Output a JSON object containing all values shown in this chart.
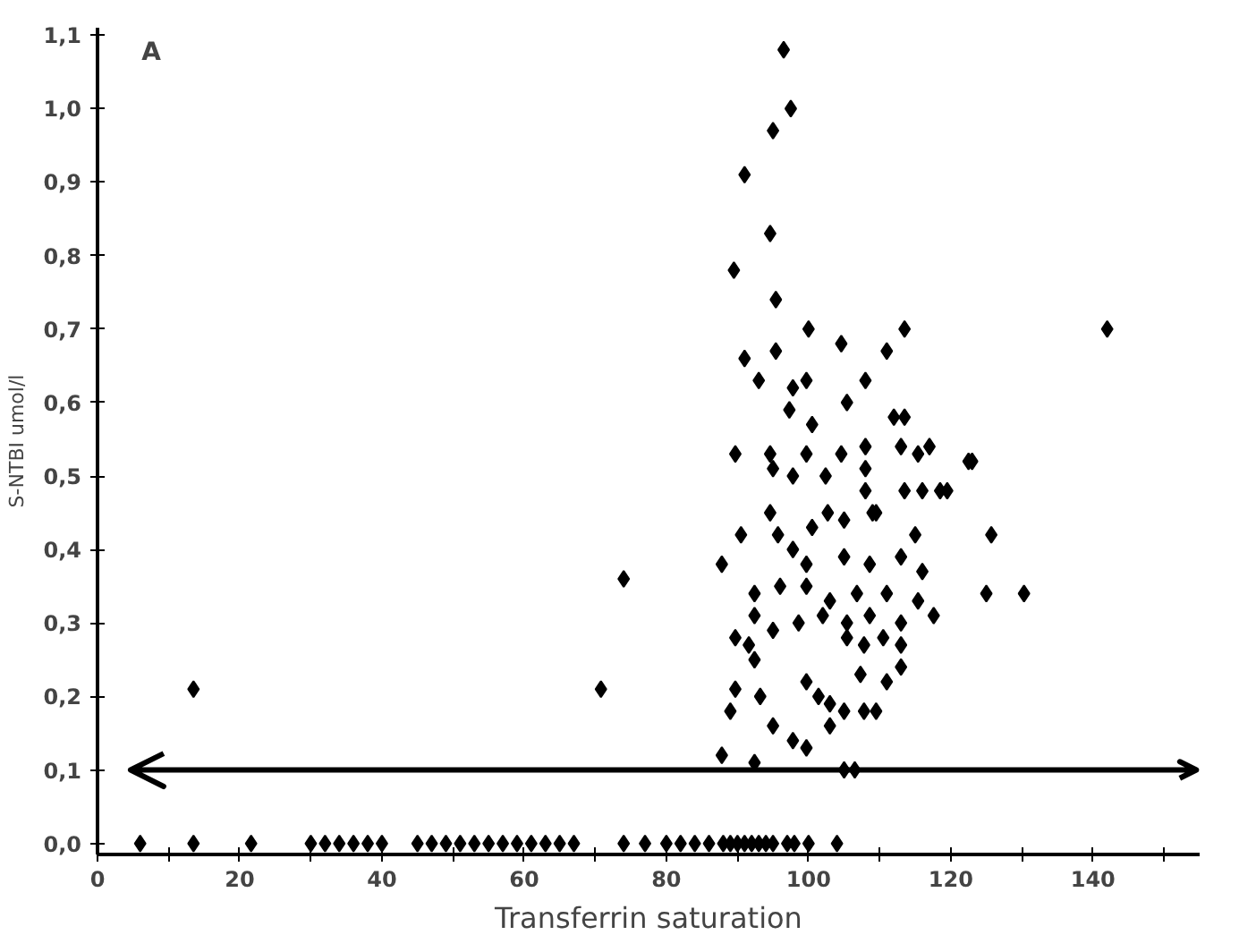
{
  "chart_data": {
    "type": "scatter",
    "xlabel": "Transferrin saturation",
    "ylabel": "S-NTBI umol/l",
    "annotations": [
      "A"
    ],
    "xlim": [
      0,
      155
    ],
    "ylim": [
      -0.015,
      1.11
    ],
    "xticks": [
      0,
      {
        "value": 10,
        "label": null
      },
      20,
      {
        "value": 30,
        "label": null
      },
      40,
      {
        "value": 50,
        "label": null
      },
      60,
      {
        "value": 70,
        "label": null
      },
      80,
      {
        "value": 90,
        "label": null
      },
      100,
      {
        "value": 110,
        "label": null
      },
      120,
      {
        "value": 130,
        "label": null
      },
      140,
      {
        "value": 150,
        "label": null
      }
    ],
    "yticks": [
      {
        "value": 0,
        "label": "0,0"
      },
      {
        "value": 0.1,
        "label": "0,1"
      },
      {
        "value": 0.2,
        "label": "0,2"
      },
      {
        "value": 0.3,
        "label": "0,3"
      },
      {
        "value": 0.4,
        "label": "0,4"
      },
      {
        "value": 0.5,
        "label": "0,5"
      },
      {
        "value": 0.6,
        "label": "0,6"
      },
      {
        "value": 0.7,
        "label": "0,7"
      },
      {
        "value": 0.8,
        "label": "0,8"
      },
      {
        "value": 0.9,
        "label": "0,9"
      },
      {
        "value": 1.0,
        "label": "1,0"
      },
      {
        "value": 1.1,
        "label": "1,1"
      }
    ],
    "ref_lines": [
      {
        "axis": "y",
        "value": 0.1,
        "color": "#000000"
      }
    ],
    "marker": "diamond",
    "grid": false,
    "series": [
      {
        "color": "#000000",
        "x": [
          6,
          13.5,
          21.6,
          30,
          32,
          34,
          36,
          38,
          40,
          45,
          47,
          49,
          51,
          53,
          55,
          57,
          59,
          61,
          63,
          65,
          67,
          74,
          77,
          80,
          82,
          84,
          86,
          88,
          89,
          90,
          91,
          92,
          93,
          94,
          95,
          97,
          98,
          100,
          104,
          13.5,
          70.8,
          74,
          96.5,
          97.5,
          95,
          91,
          94.6,
          89.5,
          95.4,
          100,
          113.5,
          104.6,
          91,
          95.4,
          111,
          93,
          99.7,
          97.8,
          108,
          105.4,
          97.3,
          100.5,
          112,
          113.5,
          89.7,
          94.6,
          99.7,
          104.6,
          108,
          113,
          117,
          115.4,
          123,
          95,
          97.8,
          102.4,
          108,
          108,
          113.5,
          116,
          119.5,
          94.6,
          102.7,
          109,
          90.5,
          95.7,
          100.5,
          105,
          109.5,
          115,
          125.7,
          87.8,
          97.8,
          99.7,
          105,
          108.6,
          113,
          116,
          92.4,
          96,
          99.7,
          103,
          106.8,
          111,
          115.4,
          125,
          130.3,
          92.4,
          95,
          98.6,
          102,
          105.4,
          108.6,
          113,
          117.6,
          89.7,
          91.6,
          105.4,
          110.5,
          107.8,
          113,
          92.4,
          113,
          107.3,
          111,
          99.7,
          89.7,
          93.2,
          101.4,
          103,
          105,
          107.8,
          109.5,
          89,
          95,
          103,
          97.8,
          99.7,
          87.8,
          92.4,
          105,
          106.5,
          122.5,
          118.5,
          142
        ],
        "values": [
          0,
          0,
          0,
          0,
          0,
          0,
          0,
          0,
          0,
          0,
          0,
          0,
          0,
          0,
          0,
          0,
          0,
          0,
          0,
          0,
          0,
          0,
          0,
          0,
          0,
          0,
          0,
          0,
          0,
          0,
          0,
          0,
          0,
          0,
          0,
          0,
          0,
          0,
          0,
          0.21,
          0.21,
          0.36,
          1.08,
          1.0,
          0.97,
          0.91,
          0.83,
          0.78,
          0.74,
          0.7,
          0.7,
          0.68,
          0.66,
          0.67,
          0.67,
          0.63,
          0.63,
          0.62,
          0.63,
          0.6,
          0.59,
          0.57,
          0.58,
          0.58,
          0.53,
          0.53,
          0.53,
          0.53,
          0.54,
          0.54,
          0.54,
          0.53,
          0.52,
          0.51,
          0.5,
          0.5,
          0.51,
          0.48,
          0.48,
          0.48,
          0.48,
          0.45,
          0.45,
          0.45,
          0.42,
          0.42,
          0.43,
          0.44,
          0.45,
          0.42,
          0.42,
          0.38,
          0.4,
          0.38,
          0.39,
          0.38,
          0.39,
          0.37,
          0.34,
          0.35,
          0.35,
          0.33,
          0.34,
          0.34,
          0.33,
          0.34,
          0.34,
          0.31,
          0.29,
          0.3,
          0.31,
          0.3,
          0.31,
          0.3,
          0.31,
          0.28,
          0.27,
          0.28,
          0.28,
          0.27,
          0.27,
          0.25,
          0.24,
          0.23,
          0.22,
          0.22,
          0.21,
          0.2,
          0.2,
          0.19,
          0.18,
          0.18,
          0.18,
          0.18,
          0.16,
          0.16,
          0.14,
          0.13,
          0.12,
          0.11,
          0.1,
          0.1,
          0.52,
          0.48,
          0.7
        ]
      }
    ]
  }
}
